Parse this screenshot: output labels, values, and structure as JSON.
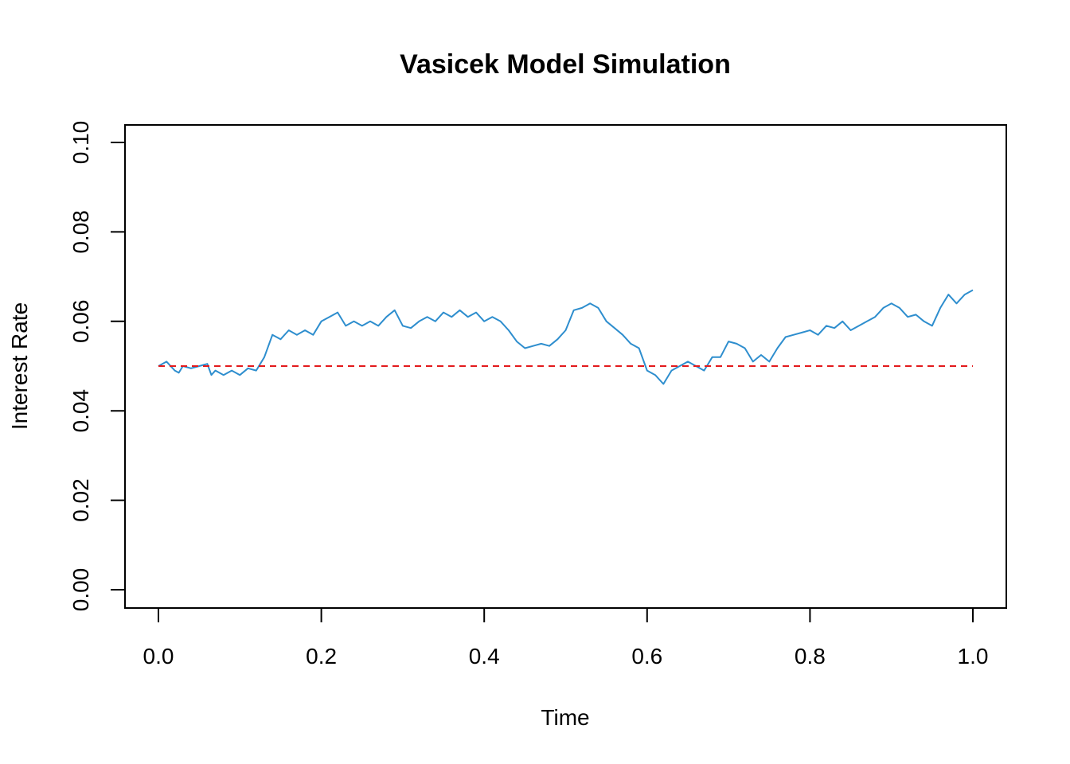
{
  "chart_data": {
    "type": "line",
    "title": "Vasicek Model Simulation",
    "xlabel": "Time",
    "ylabel": "Interest Rate",
    "xlim": [
      0,
      1
    ],
    "ylim": [
      0,
      0.1
    ],
    "grid": false,
    "x_ticks": [
      "0.0",
      "0.2",
      "0.4",
      "0.6",
      "0.8",
      "1.0"
    ],
    "y_ticks": [
      "0.00",
      "0.02",
      "0.04",
      "0.06",
      "0.08",
      "0.10"
    ],
    "colors": {
      "series": "#2E8ECE",
      "reference": "#E31A1C"
    },
    "series": [
      {
        "style": "solid",
        "x": [
          0.0,
          0.01,
          0.02,
          0.025,
          0.03,
          0.04,
          0.05,
          0.06,
          0.065,
          0.07,
          0.08,
          0.09,
          0.1,
          0.11,
          0.12,
          0.13,
          0.14,
          0.15,
          0.16,
          0.17,
          0.18,
          0.19,
          0.2,
          0.21,
          0.22,
          0.23,
          0.24,
          0.25,
          0.26,
          0.27,
          0.28,
          0.29,
          0.3,
          0.31,
          0.32,
          0.33,
          0.34,
          0.35,
          0.36,
          0.37,
          0.38,
          0.39,
          0.4,
          0.41,
          0.42,
          0.43,
          0.44,
          0.45,
          0.46,
          0.47,
          0.48,
          0.49,
          0.5,
          0.51,
          0.52,
          0.53,
          0.54,
          0.55,
          0.56,
          0.57,
          0.58,
          0.59,
          0.6,
          0.61,
          0.62,
          0.63,
          0.64,
          0.65,
          0.66,
          0.67,
          0.68,
          0.69,
          0.7,
          0.71,
          0.72,
          0.73,
          0.74,
          0.75,
          0.76,
          0.77,
          0.78,
          0.79,
          0.8,
          0.81,
          0.82,
          0.83,
          0.84,
          0.85,
          0.86,
          0.87,
          0.88,
          0.89,
          0.9,
          0.91,
          0.92,
          0.93,
          0.94,
          0.95,
          0.96,
          0.97,
          0.98,
          0.99,
          1.0
        ],
        "y": [
          0.05,
          0.051,
          0.049,
          0.0485,
          0.05,
          0.0495,
          0.05,
          0.0505,
          0.048,
          0.049,
          0.048,
          0.049,
          0.048,
          0.0495,
          0.049,
          0.052,
          0.057,
          0.056,
          0.058,
          0.057,
          0.058,
          0.057,
          0.06,
          0.061,
          0.062,
          0.059,
          0.06,
          0.059,
          0.06,
          0.059,
          0.061,
          0.0625,
          0.059,
          0.0585,
          0.06,
          0.061,
          0.06,
          0.062,
          0.061,
          0.0625,
          0.061,
          0.062,
          0.06,
          0.061,
          0.06,
          0.058,
          0.0555,
          0.054,
          0.0545,
          0.055,
          0.0545,
          0.056,
          0.058,
          0.0625,
          0.063,
          0.064,
          0.063,
          0.06,
          0.0585,
          0.057,
          0.055,
          0.054,
          0.049,
          0.048,
          0.046,
          0.049,
          0.05,
          0.051,
          0.05,
          0.049,
          0.052,
          0.052,
          0.0555,
          0.055,
          0.054,
          0.051,
          0.0525,
          0.051,
          0.054,
          0.0565,
          0.057,
          0.0575,
          0.058,
          0.057,
          0.059,
          0.0585,
          0.06,
          0.058,
          0.059,
          0.06,
          0.061,
          0.063,
          0.064,
          0.063,
          0.061,
          0.0615,
          0.06,
          0.059,
          0.063,
          0.066,
          0.064,
          0.066,
          0.067
        ]
      },
      {
        "style": "dashed",
        "x": [
          0,
          1
        ],
        "y": [
          0.05,
          0.05
        ]
      }
    ]
  }
}
